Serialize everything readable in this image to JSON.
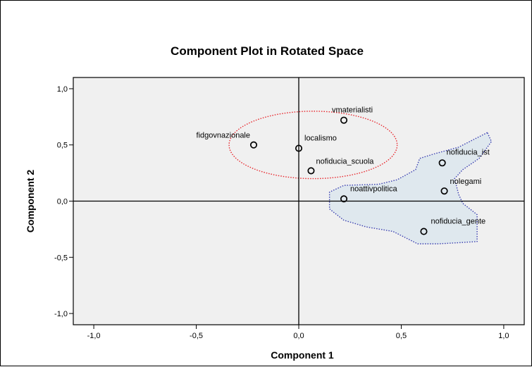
{
  "chart_data": {
    "type": "scatter",
    "title": "Component Plot in Rotated Space",
    "xlabel": "Component 1",
    "ylabel": "Component 2",
    "xlim": [
      -1.1,
      1.1
    ],
    "ylim": [
      -1.1,
      1.1
    ],
    "xticks": [
      -1.0,
      -0.5,
      0.0,
      0.5,
      1.0
    ],
    "yticks": [
      -1.0,
      -0.5,
      0.0,
      0.5,
      1.0
    ],
    "xtick_labels": [
      "-1,0",
      "-0,5",
      "0,0",
      "0,5",
      "1,0"
    ],
    "ytick_labels": [
      "-1,0",
      "-0,5",
      "0,0",
      "0,5",
      "1,0"
    ],
    "grid": false,
    "reference_lines": {
      "x": 0,
      "y": 0
    },
    "points": [
      {
        "label": "vmaterialisti",
        "x": 0.22,
        "y": 0.72
      },
      {
        "label": "fidgovnazionale",
        "x": -0.22,
        "y": 0.5
      },
      {
        "label": "localismo",
        "x": 0.0,
        "y": 0.47
      },
      {
        "label": "nofiducia_scuola",
        "x": 0.06,
        "y": 0.27
      },
      {
        "label": "nofiducia_ist",
        "x": 0.7,
        "y": 0.34
      },
      {
        "label": "nolegami",
        "x": 0.71,
        "y": 0.09
      },
      {
        "label": "noattivpolitica",
        "x": 0.22,
        "y": 0.02
      },
      {
        "label": "nofiducia_gente",
        "x": 0.61,
        "y": -0.27
      }
    ],
    "annotations": [
      {
        "shape": "ellipse",
        "style": "dotted",
        "color": "#e8262c",
        "center": [
          0.07,
          0.5
        ],
        "radius_x": 0.41,
        "radius_y": 0.3
      },
      {
        "shape": "region",
        "style": "dotted",
        "color": "#3b3fb0",
        "fill": "#dfe8ee",
        "outline": [
          [
            0.92,
            0.61
          ],
          [
            0.78,
            0.48
          ],
          [
            0.66,
            0.42
          ],
          [
            0.59,
            0.38
          ],
          [
            0.57,
            0.28
          ],
          [
            0.48,
            0.19
          ],
          [
            0.39,
            0.15
          ],
          [
            0.22,
            0.14
          ],
          [
            0.15,
            0.08
          ],
          [
            0.15,
            -0.07
          ],
          [
            0.22,
            -0.17
          ],
          [
            0.33,
            -0.23
          ],
          [
            0.46,
            -0.27
          ],
          [
            0.58,
            -0.38
          ],
          [
            0.68,
            -0.38
          ],
          [
            0.78,
            -0.37
          ],
          [
            0.87,
            -0.36
          ],
          [
            0.87,
            -0.12
          ],
          [
            0.8,
            -0.02
          ],
          [
            0.78,
            0.06
          ],
          [
            0.76,
            0.2
          ],
          [
            0.8,
            0.28
          ],
          [
            0.88,
            0.38
          ],
          [
            0.94,
            0.53
          ]
        ]
      }
    ],
    "colors": {
      "plot_background": "#f0f0f0",
      "axis": "#000000",
      "marker_edge": "#000000"
    }
  }
}
